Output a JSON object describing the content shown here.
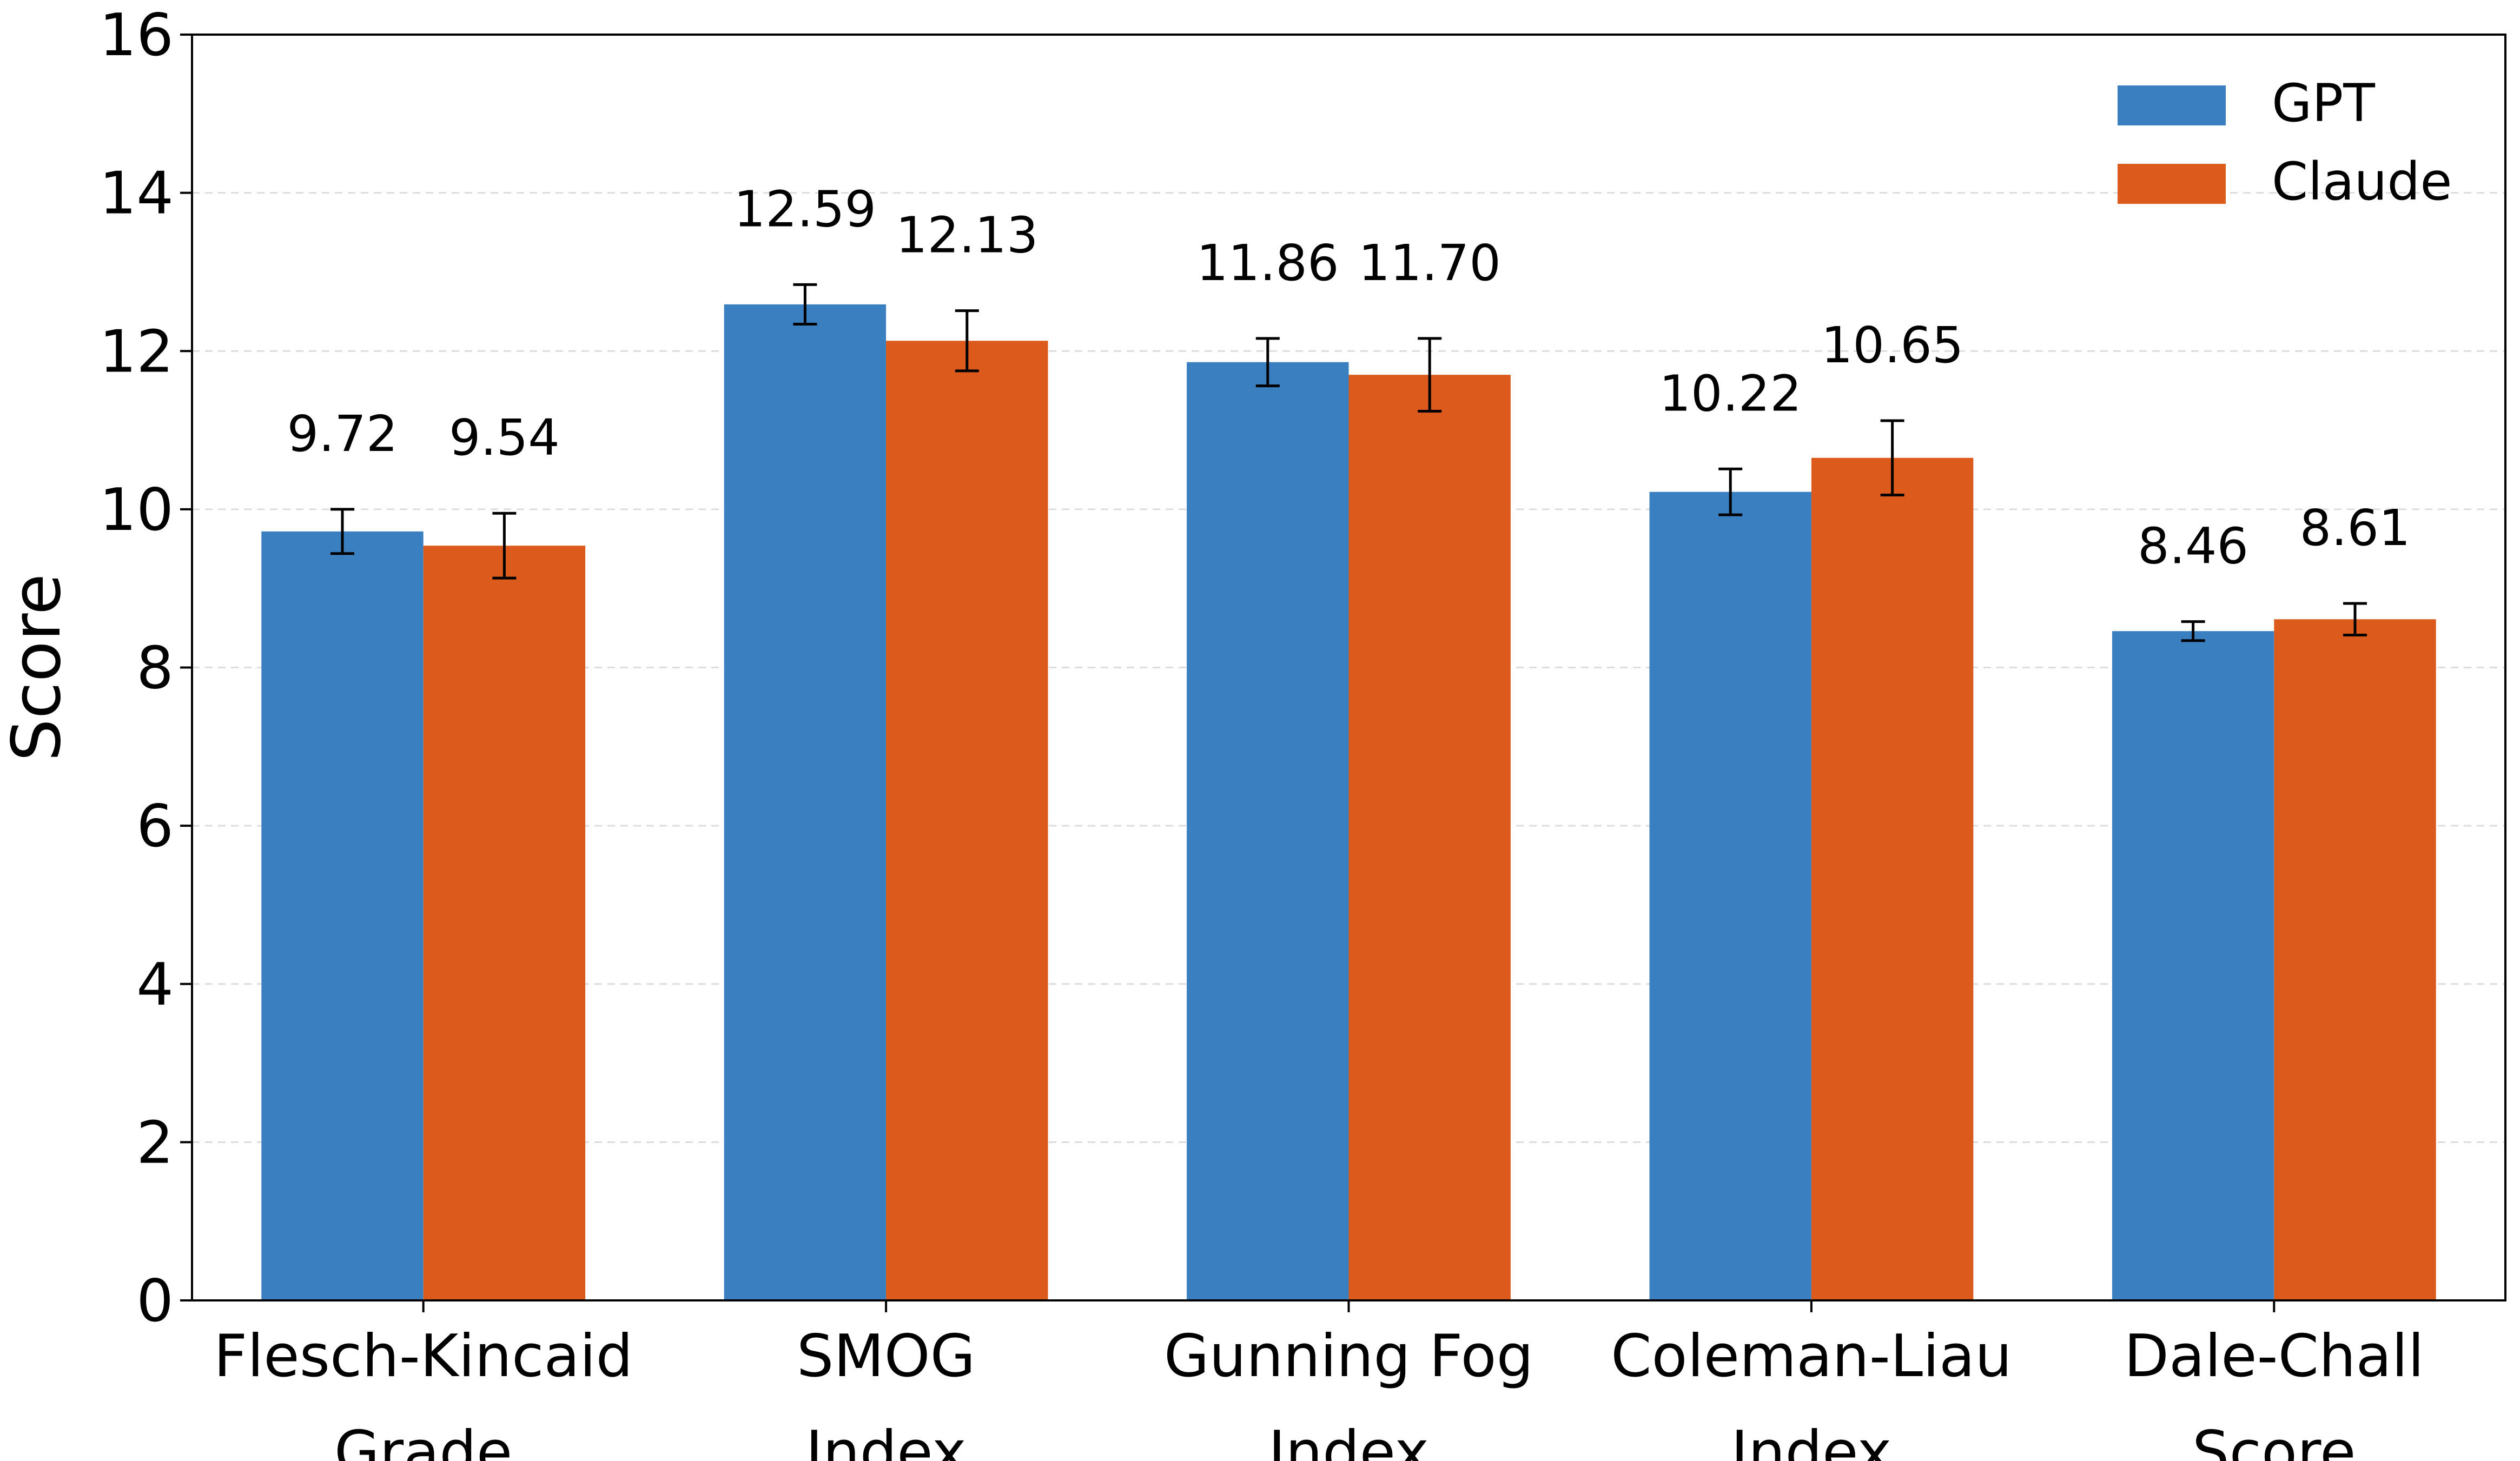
{
  "chart_data": {
    "type": "bar",
    "title": "",
    "xlabel": "",
    "ylabel": "Score",
    "ylim": [
      0,
      16
    ],
    "yticks": [
      0,
      2,
      4,
      6,
      8,
      10,
      12,
      14,
      16
    ],
    "grid": "y-dashed",
    "legend_position": "top-right",
    "categories": [
      [
        "Flesch-Kincaid",
        "Grade"
      ],
      [
        "SMOG",
        "Index"
      ],
      [
        "Gunning Fog",
        "Index"
      ],
      [
        "Coleman-Liau",
        "Index"
      ],
      [
        "Dale-Chall",
        "Score"
      ]
    ],
    "series": [
      {
        "name": "GPT",
        "color": "#3a7fbf",
        "values": [
          9.72,
          12.59,
          11.86,
          10.22,
          8.46
        ],
        "errors": [
          0.28,
          0.25,
          0.3,
          0.29,
          0.12
        ],
        "labels": [
          "9.72",
          "12.59",
          "11.86",
          "10.22",
          "8.46"
        ]
      },
      {
        "name": "Claude",
        "color": "#dc5b1c",
        "values": [
          9.54,
          12.13,
          11.7,
          10.65,
          8.61
        ],
        "errors": [
          0.41,
          0.38,
          0.46,
          0.47,
          0.2
        ],
        "labels": [
          "9.54",
          "12.13",
          "11.70",
          "10.65",
          "8.61"
        ]
      }
    ]
  }
}
